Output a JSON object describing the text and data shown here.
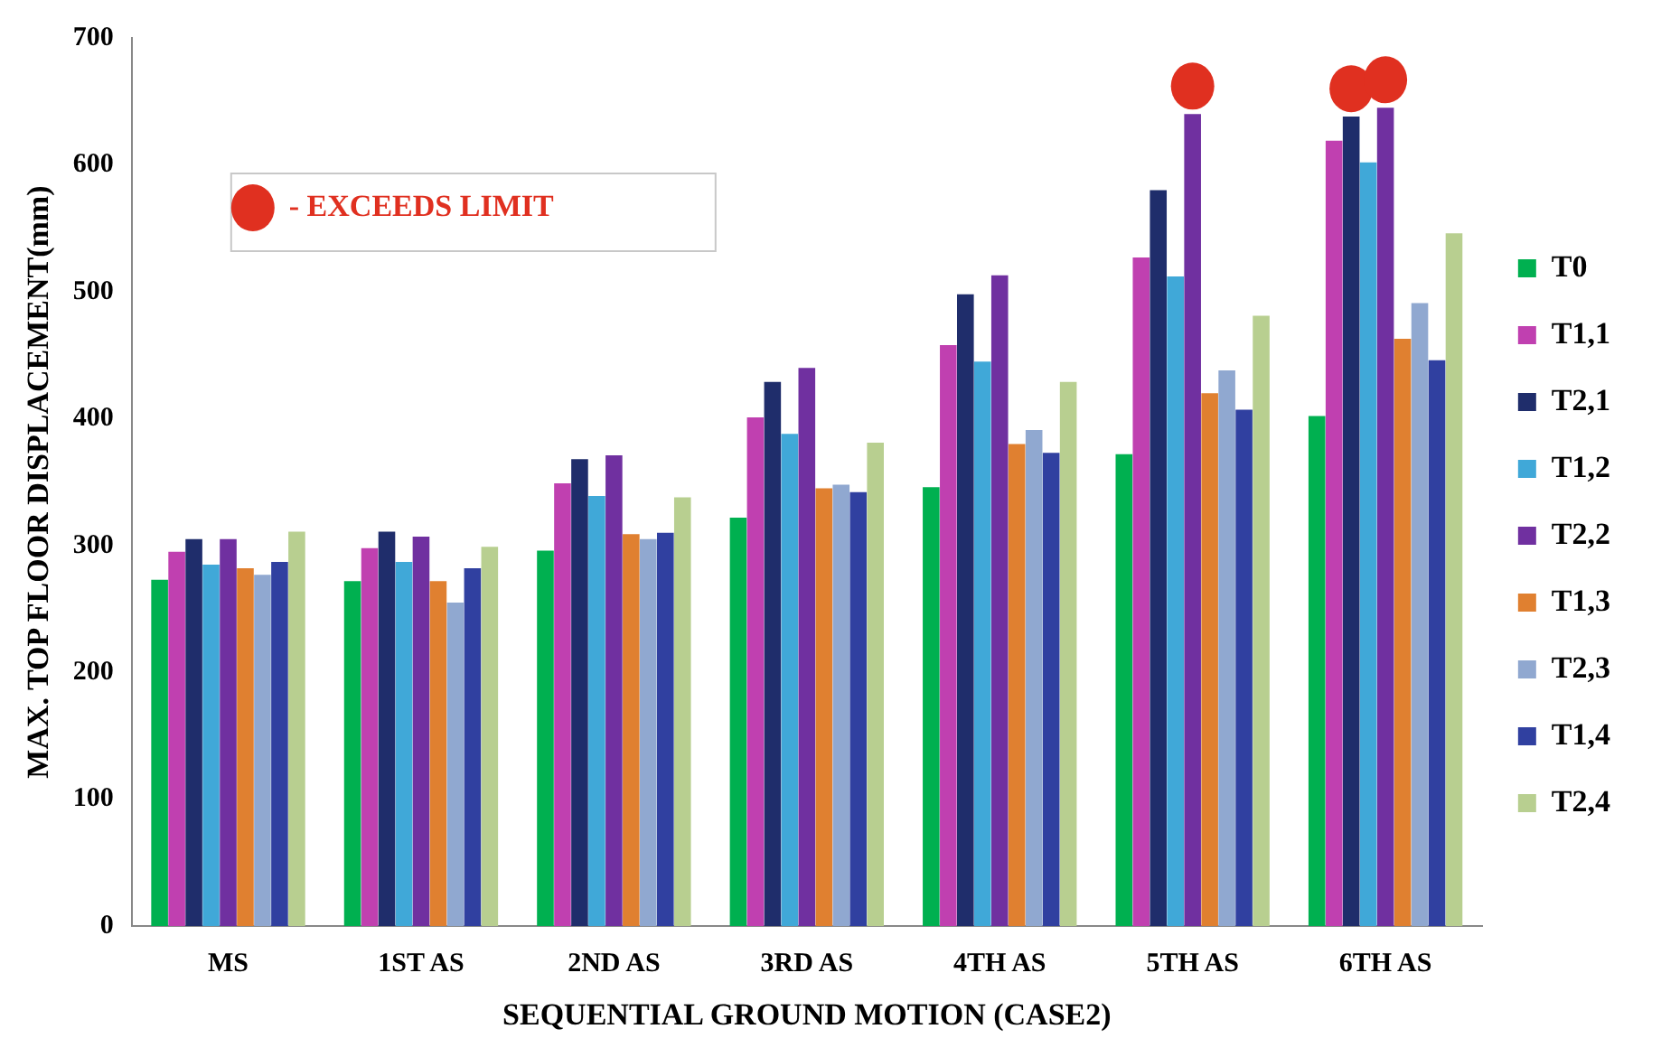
{
  "chart_data": {
    "type": "bar",
    "xlabel": "SEQUENTIAL GROUND MOTION (CASE2)",
    "ylabel": "MAX. TOP FLOOR DISPLACEMENT(mm)",
    "categories": [
      "MS",
      "1ST AS",
      "2ND AS",
      "3RD AS",
      "4TH AS",
      "5TH AS",
      "6TH AS"
    ],
    "series": [
      {
        "name": "T0",
        "color": "#00b050",
        "values": [
          273,
          272,
          296,
          322,
          346,
          372,
          402
        ]
      },
      {
        "name": "T1,1",
        "color": "#c040b0",
        "values": [
          295,
          298,
          349,
          401,
          458,
          527,
          619
        ]
      },
      {
        "name": "T2,1",
        "color": "#1f2d6b",
        "values": [
          305,
          311,
          368,
          429,
          498,
          580,
          638
        ]
      },
      {
        "name": "T1,2",
        "color": "#40a8d8",
        "values": [
          285,
          287,
          339,
          388,
          445,
          512,
          602
        ]
      },
      {
        "name": "T2,2",
        "color": "#7030a0",
        "values": [
          305,
          307,
          371,
          440,
          513,
          640,
          645
        ]
      },
      {
        "name": "T1,3",
        "color": "#e08030",
        "values": [
          282,
          272,
          309,
          345,
          380,
          420,
          463
        ]
      },
      {
        "name": "T2,3",
        "color": "#90a8d0",
        "values": [
          277,
          255,
          305,
          348,
          391,
          438,
          491
        ]
      },
      {
        "name": "T1,4",
        "color": "#3040a0",
        "values": [
          287,
          282,
          310,
          342,
          373,
          407,
          446
        ]
      },
      {
        "name": "T2,4",
        "color": "#b8cf90",
        "values": [
          311,
          299,
          338,
          381,
          429,
          481,
          546
        ]
      },
      {
        "name": "- EXCEEDS LIMIT",
        "type": "scatter",
        "color": "#e03020",
        "x": [
          "5TH AS",
          "6TH AS",
          "6TH AS"
        ],
        "values": [
          662,
          660,
          667
        ]
      }
    ],
    "ylim": [
      0,
      700
    ],
    "yticks": [
      0,
      100,
      200,
      300,
      400,
      500,
      600,
      700
    ],
    "grid": false,
    "legend": "right"
  }
}
